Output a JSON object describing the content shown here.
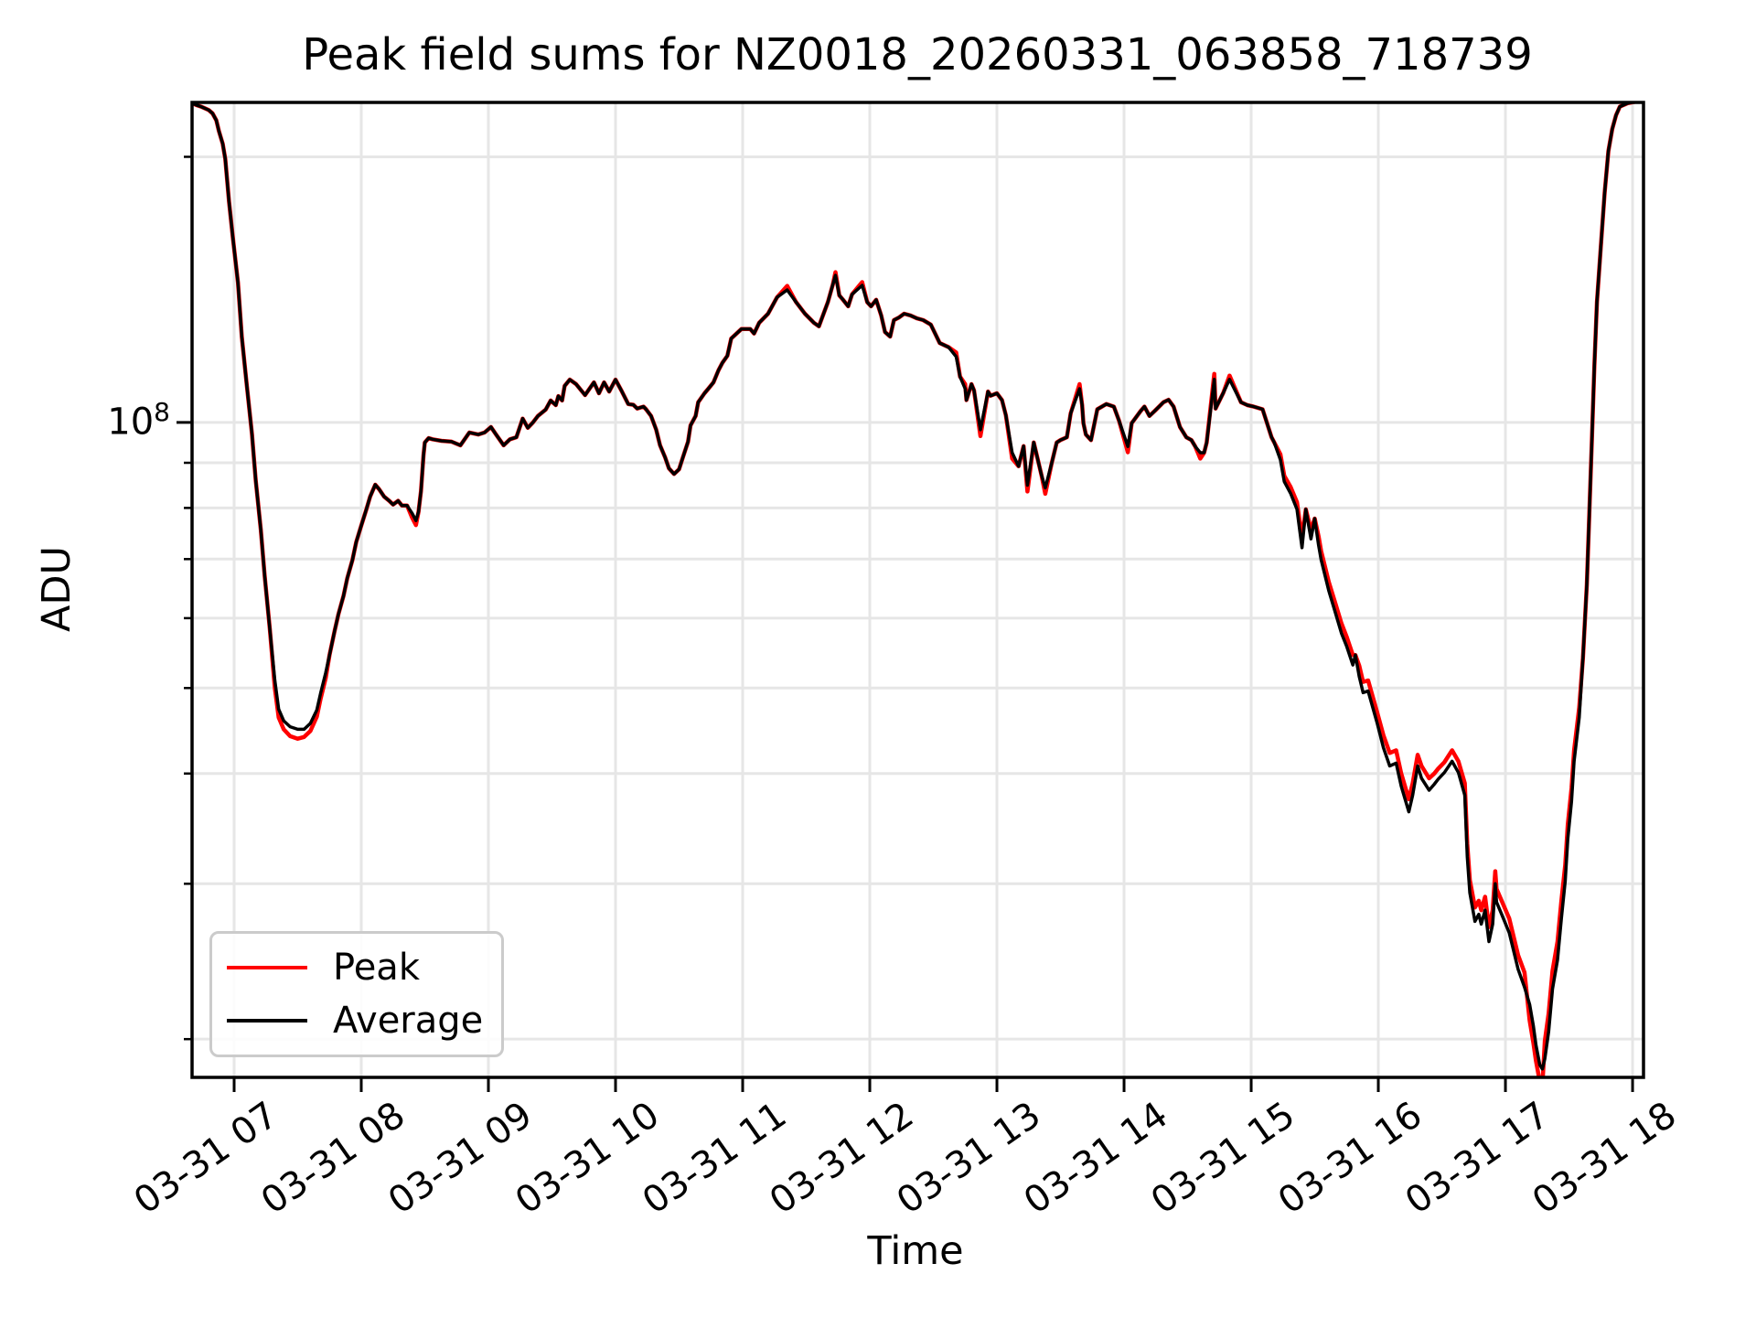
{
  "chart_data": {
    "type": "line",
    "title": "Peak field sums for NZ0018_20260331_063858_718739",
    "xlabel": "Time",
    "ylabel": "ADU",
    "y_scale": "log",
    "grid": true,
    "legend_position": "lower left",
    "colors": {
      "grid": "#e6e6e6",
      "axis": "#000000",
      "peak": "#ff0000",
      "average": "#000000"
    },
    "x_axis": {
      "min_hours": 6.669,
      "max_hours": 18.086,
      "ticks": [
        {
          "value": 7,
          "label": "03-31 07"
        },
        {
          "value": 8,
          "label": "03-31 08"
        },
        {
          "value": 9,
          "label": "03-31 09"
        },
        {
          "value": 10,
          "label": "03-31 10"
        },
        {
          "value": 11,
          "label": "03-31 11"
        },
        {
          "value": 12,
          "label": "03-31 12"
        },
        {
          "value": 13,
          "label": "03-31 13"
        },
        {
          "value": 14,
          "label": "03-31 14"
        },
        {
          "value": 15,
          "label": "03-31 15"
        },
        {
          "value": 16,
          "label": "03-31 16"
        },
        {
          "value": 17,
          "label": "03-31 17"
        },
        {
          "value": 18,
          "label": "03-31 18"
        }
      ]
    },
    "y_axis": {
      "min": 18100000.0,
      "max": 230500000.0,
      "major_tick": {
        "value": 100000000.0,
        "base": "10",
        "exp": "8"
      },
      "minor_ticks": [
        200000000.0,
        90000000.0,
        80000000.0,
        70000000.0,
        60000000.0,
        50000000.0,
        40000000.0,
        30000000.0,
        20000000.0
      ]
    },
    "series": [
      {
        "name": "Peak",
        "color": "#ff0000"
      },
      {
        "name": "Average",
        "color": "#000000"
      }
    ],
    "points_format": [
      "time_hours_03-31",
      "average_adu",
      "peak_adu_if_different"
    ],
    "points": [
      [
        6.67,
        230000000.0
      ],
      [
        6.7,
        229000000.0
      ],
      [
        6.74,
        228000000.0
      ],
      [
        6.8,
        226000000.0
      ],
      [
        6.83,
        224000000.0
      ],
      [
        6.86,
        220000000.0
      ],
      [
        6.88,
        214000000.0
      ],
      [
        6.91,
        207000000.0
      ],
      [
        6.93,
        199000000.0
      ],
      [
        6.96,
        178000000.0
      ],
      [
        6.99,
        162000000.0
      ],
      [
        7.03,
        144000000.0
      ],
      [
        7.06,
        125000000.0
      ],
      [
        7.1,
        110000000.0
      ],
      [
        7.14,
        97000000.0
      ],
      [
        7.17,
        86000000.0
      ],
      [
        7.21,
        75500000.0
      ],
      [
        7.24,
        67000000.0
      ],
      [
        7.28,
        58500000.0
      ],
      [
        7.32,
        51000000.0,
        50000000.0
      ],
      [
        7.35,
        47300000.0,
        46300000.0
      ],
      [
        7.39,
        45900000.0,
        44900000.0
      ],
      [
        7.44,
        45200000.0,
        44100000.0
      ],
      [
        7.5,
        44900000.0,
        43800000.0
      ],
      [
        7.55,
        44900000.0,
        44000000.0
      ],
      [
        7.6,
        45600000.0,
        44700000.0
      ],
      [
        7.65,
        47200000.0,
        46400000.0
      ],
      [
        7.68,
        49300000.0,
        48600000.0
      ],
      [
        7.72,
        52000000.0,
        51300000.0
      ],
      [
        7.75,
        54500000.0
      ],
      [
        7.79,
        58000000.0
      ],
      [
        7.82,
        60600000.0
      ],
      [
        7.86,
        63600000.0
      ],
      [
        7.89,
        66600000.0
      ],
      [
        7.93,
        69800000.0
      ],
      [
        7.96,
        73200000.0
      ],
      [
        8.0,
        76400000.0
      ],
      [
        8.04,
        79700000.0
      ],
      [
        8.07,
        82400000.0
      ],
      [
        8.11,
        85000000.0
      ],
      [
        8.14,
        84000000.0
      ],
      [
        8.18,
        82400000.0
      ],
      [
        8.22,
        81500000.0
      ],
      [
        8.25,
        80700000.0
      ],
      [
        8.29,
        81500000.0
      ],
      [
        8.32,
        80500000.0
      ],
      [
        8.36,
        80500000.0
      ],
      [
        8.4,
        78900000.0,
        78000000.0
      ],
      [
        8.43,
        77400000.0,
        76500000.0
      ],
      [
        8.45,
        79200000.0
      ],
      [
        8.47,
        83600000.0
      ],
      [
        8.49,
        91900000.0
      ],
      [
        8.5,
        94900000.0
      ],
      [
        8.53,
        96000000.0
      ],
      [
        8.56,
        95700000.0
      ],
      [
        8.63,
        95300000.0
      ],
      [
        8.71,
        95100000.0
      ],
      [
        8.78,
        94200000.0
      ],
      [
        8.85,
        97400000.0
      ],
      [
        8.92,
        96900000.0
      ],
      [
        8.97,
        97400000.0
      ],
      [
        9.02,
        98800000.0
      ],
      [
        9.06,
        96900000.0
      ],
      [
        9.12,
        94200000.0
      ],
      [
        9.17,
        95700000.0
      ],
      [
        9.22,
        96200000.0
      ],
      [
        9.27,
        101000000.0
      ],
      [
        9.31,
        98600000.0
      ],
      [
        9.35,
        100000000.0
      ],
      [
        9.39,
        101700000.0
      ],
      [
        9.45,
        103400000.0
      ],
      [
        9.49,
        105900000.0
      ],
      [
        9.53,
        104600000.0
      ],
      [
        9.55,
        107100000.0
      ],
      [
        9.58,
        105900000.0
      ],
      [
        9.6,
        110000000.0
      ],
      [
        9.64,
        111800000.0
      ],
      [
        9.69,
        110500000.0
      ],
      [
        9.76,
        107400000.0
      ],
      [
        9.83,
        111000000.0
      ],
      [
        9.87,
        107900000.0
      ],
      [
        9.91,
        111000000.0
      ],
      [
        9.95,
        108400000.0
      ],
      [
        10.0,
        111800000.0
      ],
      [
        10.05,
        108400000.0
      ],
      [
        10.1,
        104900000.0
      ],
      [
        10.14,
        104700000.0
      ],
      [
        10.17,
        103700000.0
      ],
      [
        10.22,
        104200000.0
      ],
      [
        10.24,
        103500000.0
      ],
      [
        10.28,
        101700000.0
      ],
      [
        10.32,
        98100000.0
      ],
      [
        10.35,
        94200000.0
      ],
      [
        10.39,
        91300000.0
      ],
      [
        10.42,
        88700000.0
      ],
      [
        10.46,
        87400000.0
      ],
      [
        10.5,
        88500000.0
      ],
      [
        10.53,
        91300000.0
      ],
      [
        10.57,
        95100000.0
      ],
      [
        10.59,
        99200000.0
      ],
      [
        10.63,
        101700000.0
      ],
      [
        10.65,
        105400000.0
      ],
      [
        10.7,
        107900000.0
      ],
      [
        10.73,
        109200000.0
      ],
      [
        10.77,
        111000000.0
      ],
      [
        10.81,
        114600000.0
      ],
      [
        10.84,
        116800000.0
      ],
      [
        10.88,
        119000000.0
      ],
      [
        10.91,
        124500000.0
      ],
      [
        10.99,
        127600000.0
      ],
      [
        11.06,
        127600000.0
      ],
      [
        11.09,
        126100000.0
      ],
      [
        11.13,
        129700000.0
      ],
      [
        11.2,
        132800000.0
      ],
      [
        11.27,
        138600000.0
      ],
      [
        11.35,
        141300000.0,
        142800000.0
      ],
      [
        11.42,
        136900000.0
      ],
      [
        11.49,
        132800000.0
      ],
      [
        11.56,
        129700000.0
      ],
      [
        11.6,
        128500000.0
      ],
      [
        11.67,
        136900000.0
      ],
      [
        11.71,
        143400000.0
      ],
      [
        11.73,
        146800000.0,
        148000000.0
      ],
      [
        11.76,
        139300000.0
      ],
      [
        11.79,
        137700000.0
      ],
      [
        11.83,
        135400000.0
      ],
      [
        11.86,
        139700000.0
      ],
      [
        11.94,
        143000000.0,
        144200000.0
      ],
      [
        11.98,
        136900000.0
      ],
      [
        12.01,
        135400000.0
      ],
      [
        12.05,
        137700000.0
      ],
      [
        12.09,
        132200000.0
      ],
      [
        12.12,
        126600000.0
      ],
      [
        12.16,
        125100000.0
      ],
      [
        12.19,
        130600000.0
      ],
      [
        12.23,
        131500000.0
      ],
      [
        12.27,
        132800000.0
      ],
      [
        12.32,
        132200000.0
      ],
      [
        12.37,
        131200000.0
      ],
      [
        12.42,
        130600000.0
      ],
      [
        12.48,
        129100000.0
      ],
      [
        12.55,
        123000000.0
      ],
      [
        12.62,
        121700000.0
      ],
      [
        12.68,
        118700000.0,
        120000000.0
      ],
      [
        12.71,
        112700000.0
      ],
      [
        12.75,
        109200000.0,
        110500000.0
      ],
      [
        12.76,
        106000000.0
      ],
      [
        12.8,
        110500000.0
      ],
      [
        12.82,
        108700000.0
      ],
      [
        12.87,
        98100000.0,
        96500000.0
      ],
      [
        12.93,
        108400000.0
      ],
      [
        12.95,
        107200000.0
      ],
      [
        13.0,
        107900000.0
      ],
      [
        13.04,
        106000000.0
      ],
      [
        13.07,
        101900000.0
      ],
      [
        13.12,
        92400000.0,
        91000000.0
      ],
      [
        13.17,
        89200000.0
      ],
      [
        13.21,
        94000000.0
      ],
      [
        13.24,
        84900000.0,
        83500000.0
      ],
      [
        13.29,
        94900000.0
      ],
      [
        13.35,
        87200000.0
      ],
      [
        13.38,
        84300000.0,
        83000000.0
      ],
      [
        13.43,
        89800000.0
      ],
      [
        13.47,
        94900000.0
      ],
      [
        13.5,
        95500000.0
      ],
      [
        13.55,
        96200000.0
      ],
      [
        13.58,
        102400000.0
      ],
      [
        13.65,
        109200000.0,
        110500000.0
      ],
      [
        13.67,
        104600000.0
      ],
      [
        13.68,
        99800000.0
      ],
      [
        13.7,
        96900000.0
      ],
      [
        13.74,
        95500000.0
      ],
      [
        13.79,
        103500000.0
      ],
      [
        13.86,
        104900000.0
      ],
      [
        13.92,
        104200000.0
      ],
      [
        13.96,
        100500000.0
      ],
      [
        14.03,
        93900000.0,
        92500000.0
      ],
      [
        14.06,
        99800000.0
      ],
      [
        14.13,
        103000000.0
      ],
      [
        14.16,
        104200000.0
      ],
      [
        14.2,
        101700000.0
      ],
      [
        14.24,
        103000000.0
      ],
      [
        14.31,
        105400000.0
      ],
      [
        14.35,
        106100000.0
      ],
      [
        14.39,
        104200000.0
      ],
      [
        14.44,
        98800000.0
      ],
      [
        14.49,
        96200000.0
      ],
      [
        14.53,
        95500000.0
      ],
      [
        14.56,
        93900000.0
      ],
      [
        14.6,
        92400000.0,
        91000000.0
      ],
      [
        14.63,
        92400000.0
      ],
      [
        14.65,
        94900000.0
      ],
      [
        14.71,
        111900000.0,
        113500000.0
      ],
      [
        14.72,
        103700000.0
      ],
      [
        14.78,
        108000000.0
      ],
      [
        14.83,
        111900000.0,
        113000000.0
      ],
      [
        14.92,
        105400000.0
      ],
      [
        14.97,
        104600000.0
      ],
      [
        15.02,
        104200000.0
      ],
      [
        15.09,
        103500000.0
      ],
      [
        15.16,
        96200000.0
      ],
      [
        15.18,
        95000000.0
      ],
      [
        15.23,
        90700000.0,
        92000000.0
      ],
      [
        15.26,
        85700000.0,
        87000000.0
      ],
      [
        15.31,
        83100000.0,
        84500000.0
      ],
      [
        15.36,
        79700000.0,
        81200000.0
      ],
      [
        15.4,
        72100000.0,
        74000000.0
      ],
      [
        15.43,
        79700000.0
      ],
      [
        15.47,
        73800000.0,
        75500000.0
      ],
      [
        15.5,
        77800000.0
      ],
      [
        15.53,
        72600000.0,
        74300000.0
      ],
      [
        15.55,
        69900000.0,
        71500000.0
      ],
      [
        15.61,
        64500000.0,
        66000000.0
      ],
      [
        15.66,
        61000000.0,
        62500000.0
      ],
      [
        15.71,
        57700000.0,
        59200000.0
      ],
      [
        15.75,
        55800000.0,
        57200000.0
      ],
      [
        15.8,
        53100000.0,
        54500000.0
      ],
      [
        15.82,
        54500000.0
      ],
      [
        15.85,
        51500000.0,
        53000000.0
      ],
      [
        15.88,
        49400000.0,
        50800000.0
      ],
      [
        15.92,
        49600000.0,
        51000000.0
      ],
      [
        15.99,
        45700000.0,
        47000000.0
      ],
      [
        16.04,
        42800000.0,
        44200000.0
      ],
      [
        16.09,
        40800000.0,
        42200000.0
      ],
      [
        16.14,
        41100000.0,
        42500000.0
      ],
      [
        16.18,
        38700000.0,
        40000000.0
      ],
      [
        16.24,
        36200000.0,
        37400000.0
      ],
      [
        16.27,
        37800000.0,
        39000000.0
      ],
      [
        16.31,
        40800000.0,
        42000000.0
      ],
      [
        16.34,
        39500000.0,
        40800000.0
      ],
      [
        16.4,
        38300000.0,
        39500000.0
      ],
      [
        16.44,
        38900000.0,
        40000000.0
      ],
      [
        16.47,
        39400000.0,
        40500000.0
      ],
      [
        16.52,
        40100000.0,
        41200000.0
      ],
      [
        16.58,
        41300000.0,
        42500000.0
      ],
      [
        16.63,
        40100000.0,
        41300000.0
      ],
      [
        16.68,
        37800000.0,
        39000000.0
      ],
      [
        16.7,
        32200000.0,
        33300000.0
      ],
      [
        16.72,
        29300000.0,
        30300000.0
      ],
      [
        16.76,
        27200000.0,
        28200000.0
      ],
      [
        16.79,
        27700000.0,
        28700000.0
      ],
      [
        16.81,
        27000000.0,
        28000000.0
      ],
      [
        16.84,
        28000000.0,
        29000000.0
      ],
      [
        16.87,
        25800000.0,
        26800000.0
      ],
      [
        16.9,
        27000000.0,
        28000000.0
      ],
      [
        16.92,
        30000000.0,
        31000000.0
      ],
      [
        16.93,
        28600000.0,
        29600000.0
      ],
      [
        16.97,
        27700000.0,
        28700000.0
      ],
      [
        17.03,
        26400000.0,
        27400000.0
      ],
      [
        17.1,
        24000000.0,
        24900000.0
      ],
      [
        17.15,
        22900000.0,
        23800000.0
      ],
      [
        17.19,
        21900000.0,
        21000000.0
      ],
      [
        17.22,
        20700000.0,
        19800000.0
      ],
      [
        17.24,
        19700000.0,
        18900000.0
      ],
      [
        17.27,
        18700000.0,
        17900000.0
      ],
      [
        17.29,
        18500000.0,
        17700000.0
      ],
      [
        17.31,
        19000000.0,
        19900000.0
      ],
      [
        17.34,
        20400000.0,
        21400000.0
      ],
      [
        17.37,
        22800000.0,
        23900000.0
      ],
      [
        17.41,
        24600000.0,
        25800000.0
      ],
      [
        17.44,
        27400000.0,
        28700000.0
      ],
      [
        17.47,
        30200000.0,
        31500000.0
      ],
      [
        17.49,
        33700000.0,
        35000000.0
      ],
      [
        17.52,
        37200000.0,
        38500000.0
      ],
      [
        17.54,
        41300000.0,
        42500000.0
      ],
      [
        17.58,
        46300000.0,
        47500000.0
      ],
      [
        17.61,
        54100000.0
      ],
      [
        17.64,
        65400000.0
      ],
      [
        17.66,
        79100000.0
      ],
      [
        17.68,
        95800000.0
      ],
      [
        17.7,
        116000000.0
      ],
      [
        17.72,
        137000000.0
      ],
      [
        17.75,
        158000000.0
      ],
      [
        17.78,
        182000000.0
      ],
      [
        17.81,
        203000000.0
      ],
      [
        17.84,
        215000000.0
      ],
      [
        17.87,
        223000000.0
      ],
      [
        17.9,
        228000000.0
      ],
      [
        17.96,
        230000000.0
      ],
      [
        18.09,
        232000000.0
      ]
    ]
  }
}
